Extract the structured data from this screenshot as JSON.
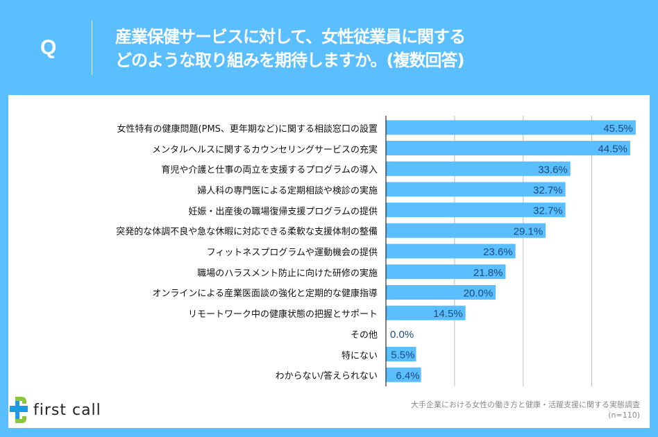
{
  "header": {
    "q_mark": "Q",
    "title_line1": "産業保健サービスに対して、女性従業員に関する",
    "title_line2": "どのような取り組みを期待しますか。(複数回答)"
  },
  "footer": {
    "logo_text": "first call",
    "source_line1": "大手企業における女性の働き方と健康・活躍支援に関する実態調査",
    "source_line2": "(n=110)"
  },
  "colors": {
    "bar": "#5bbfff",
    "label_text": "#1a4a7a",
    "background": "#5bbfff"
  },
  "chart_data": {
    "type": "bar",
    "orientation": "horizontal",
    "title": "産業保健サービスに対して、女性従業員に関するどのような取り組みを期待しますか。(複数回答)",
    "xlabel": "",
    "ylabel": "",
    "xlim": [
      0,
      47
    ],
    "gridlines": [
      12.5,
      25,
      37.5
    ],
    "grid": true,
    "legend": "none",
    "categories": [
      "女性特有の健康問題(PMS、更年期など)に関する相談窓口の設置",
      "メンタルヘルスに関するカウンセリングサービスの充実",
      "育児や介護と仕事の両立を支援するプログラムの導入",
      "婦人科の専門医による定期相談や検診の実施",
      "妊娠・出産後の職場復帰支援プログラムの提供",
      "突発的な体調不良や急な休暇に対応できる柔軟な支援体制の整備",
      "フィットネスプログラムや運動機会の提供",
      "職場のハラスメント防止に向けた研修の実施",
      "オンラインによる産業医面談の強化と定期的な健康指導",
      "リモートワーク中の健康状態の把握とサポート",
      "その他",
      "特にない",
      "わからない/答えられない"
    ],
    "values": [
      45.5,
      44.5,
      33.6,
      32.7,
      32.7,
      29.1,
      23.6,
      21.8,
      20.0,
      14.5,
      0.0,
      5.5,
      6.4
    ],
    "value_labels": [
      "45.5%",
      "44.5%",
      "33.6%",
      "32.7%",
      "32.7%",
      "29.1%",
      "23.6%",
      "21.8%",
      "20.0%",
      "14.5%",
      "0.0%",
      "5.5%",
      "6.4%"
    ],
    "unit": "%"
  }
}
